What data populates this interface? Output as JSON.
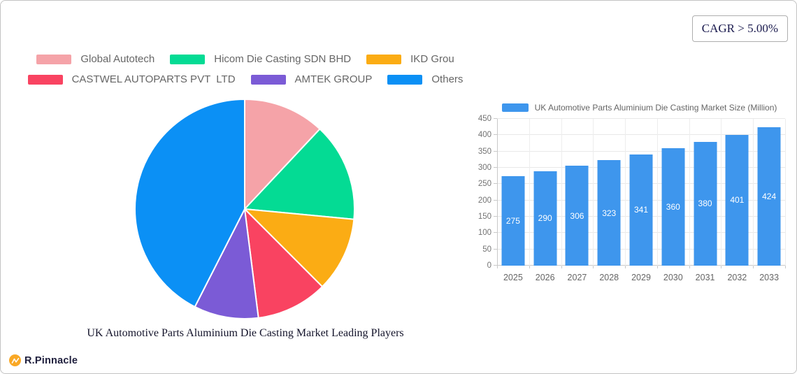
{
  "cagr_badge": {
    "label": "CAGR > 5.00%"
  },
  "logo": {
    "brand": "R.Pinnacle",
    "icon_color": "#F9A825"
  },
  "chart_data": [
    {
      "type": "pie",
      "title": "UK Automotive Parts Aluminium Die Casting Market Leading Players",
      "labels": [
        "Global Autotech",
        "Hicom Die Casting SDN BHD",
        "IKD Grou",
        "CASTWEL AUTOPARTS PVT  LTD",
        "AMTEK GROUP",
        "Others"
      ],
      "values": [
        12,
        14.5,
        11,
        10.5,
        9.5,
        42.5
      ],
      "values_note": "percent share, estimated from slice angles (no labels shown)",
      "colors": [
        "#F5A3A8",
        "#04DB94",
        "#FBAC14",
        "#F94361",
        "#7B5BD6",
        "#0B90F5"
      ],
      "legend_position": "top-left",
      "legend_rows": [
        3,
        3
      ],
      "start_angle_deg": 0,
      "clockwise": true
    },
    {
      "type": "bar",
      "categories": [
        "2025",
        "2026",
        "2027",
        "2028",
        "2029",
        "2030",
        "2031",
        "2032",
        "2033"
      ],
      "series": [
        {
          "name": "UK Automotive Parts Aluminium Die Casting Market Size (Million)",
          "values": [
            275,
            290,
            306,
            323,
            341,
            360,
            380,
            401,
            424
          ],
          "color": "#3E96ED"
        }
      ],
      "ylim": [
        0,
        450
      ],
      "ytick_step": 50,
      "grid": true,
      "legend_position": "top",
      "value_labels": "inside-center-white"
    }
  ]
}
